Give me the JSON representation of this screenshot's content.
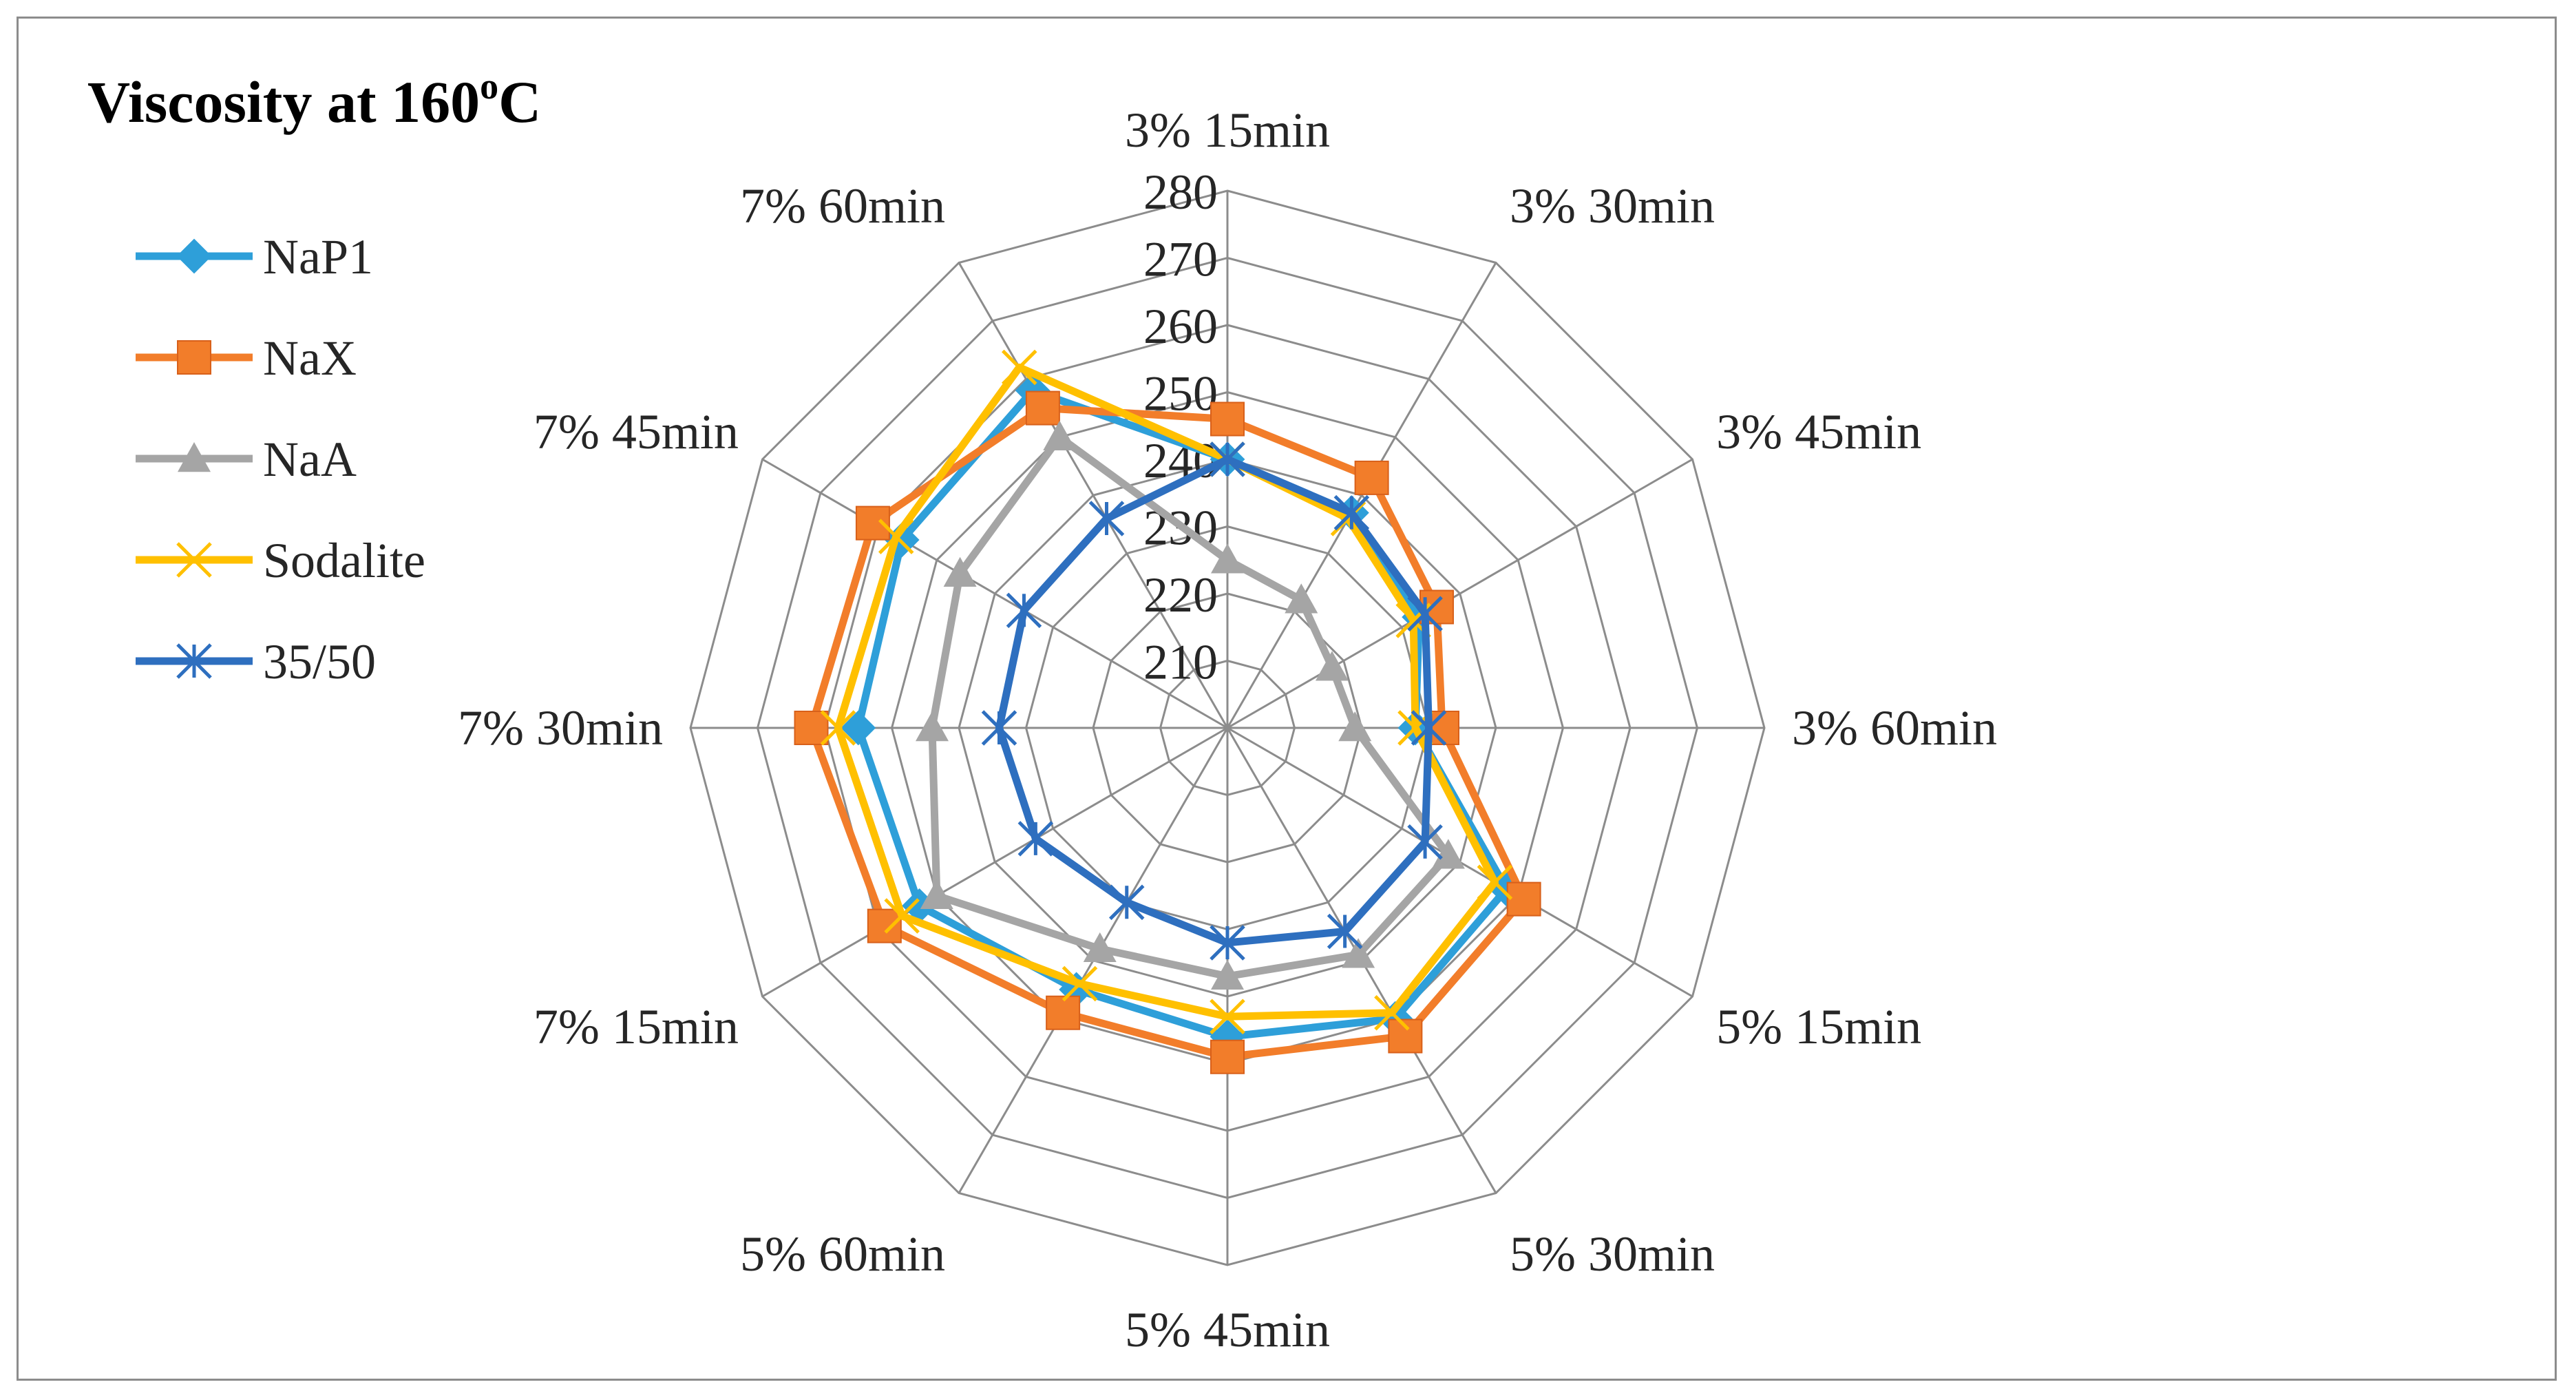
{
  "chart_data": {
    "type": "radar",
    "title_main": "Viscosity  at 160",
    "title_sup": "o",
    "title_end": "C",
    "categories": [
      "3% 15min",
      "3% 30min",
      "3% 45min",
      "3% 60min",
      "5% 15min",
      "5% 30min",
      "5% 45min",
      "5% 60min",
      "7% 15min",
      "7% 30min",
      "7% 45min",
      "7% 60min"
    ],
    "rlim": [
      200,
      280
    ],
    "ticks": [
      210,
      220,
      230,
      240,
      250,
      260,
      270,
      280
    ],
    "tick_labels": [
      "210",
      "220",
      "230",
      "240",
      "250",
      "260",
      "270",
      "280"
    ],
    "gridlines": true,
    "legend_position": "left",
    "series": [
      {
        "name": "NaP1",
        "color": "#2E9FD9",
        "marker": "diamond",
        "values": [
          240,
          237,
          233,
          228,
          248,
          250,
          246,
          245,
          253,
          255,
          256,
          258
        ]
      },
      {
        "name": "NaX",
        "color": "#F27D2A",
        "marker": "square",
        "values": [
          246,
          243,
          236,
          232,
          251,
          253,
          249,
          249,
          259,
          262,
          261,
          255
        ]
      },
      {
        "name": "NaA",
        "color": "#A5A5A5",
        "marker": "triangle",
        "values": [
          225,
          222,
          218,
          219,
          238,
          239,
          237,
          238,
          250,
          244,
          246,
          250
        ]
      },
      {
        "name": "Sodalite",
        "color": "#FFC000",
        "marker": "x",
        "values": [
          240,
          236,
          232,
          228,
          246,
          249,
          243,
          244,
          256,
          258,
          257,
          262
        ]
      },
      {
        "name": "35/50",
        "color": "#2E6FBF",
        "marker": "star",
        "values": [
          240,
          237,
          234,
          230,
          234,
          235,
          232,
          230,
          233,
          234,
          235,
          236
        ]
      }
    ]
  }
}
